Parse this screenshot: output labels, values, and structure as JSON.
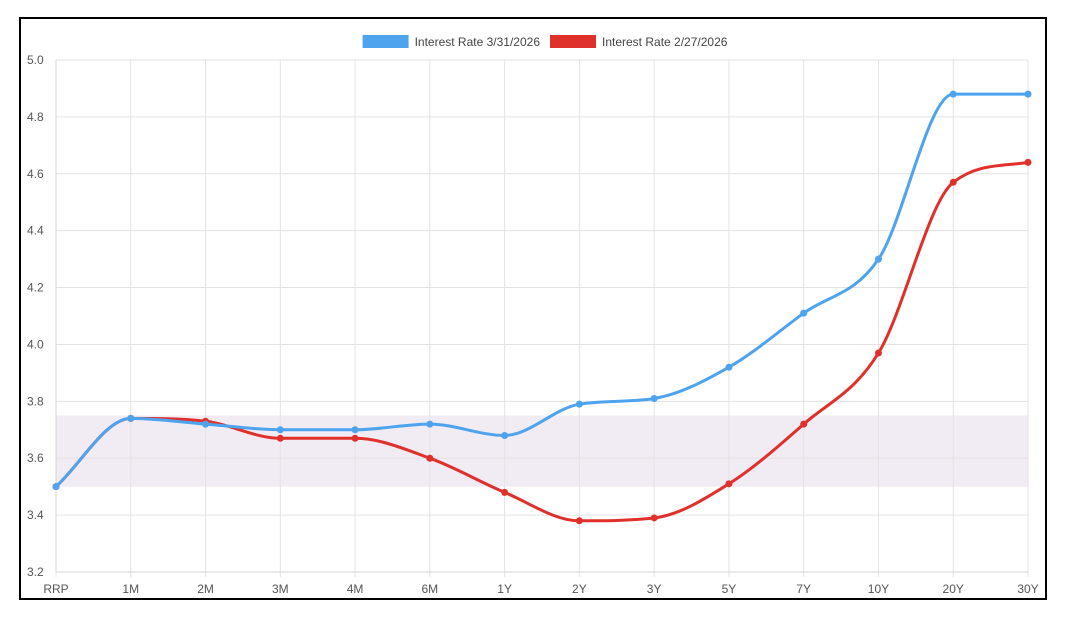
{
  "chart_data": {
    "type": "line",
    "title": "",
    "xlabel": "",
    "ylabel": "",
    "categories": [
      "RRP",
      "1M",
      "2M",
      "3M",
      "4M",
      "6M",
      "1Y",
      "2Y",
      "3Y",
      "5Y",
      "7Y",
      "10Y",
      "20Y",
      "30Y"
    ],
    "ylim": [
      3.2,
      5.0
    ],
    "yticks": [
      "3.2",
      "3.4",
      "3.6",
      "3.8",
      "4.0",
      "4.2",
      "4.4",
      "4.6",
      "4.8",
      "5.0"
    ],
    "grid": true,
    "legend_position": "top-center",
    "shaded_band": {
      "from": 3.5,
      "to": 3.75,
      "color": "#f1ebf3"
    },
    "series": [
      {
        "name": "Interest Rate 3/31/2026",
        "color": "#4ea3ee",
        "values": [
          3.5,
          3.74,
          3.72,
          3.7,
          3.7,
          3.72,
          3.68,
          3.79,
          3.81,
          3.92,
          4.11,
          4.3,
          4.88,
          4.88
        ]
      },
      {
        "name": "Interest Rate 2/27/2026",
        "color": "#e0302b",
        "values": [
          3.5,
          3.74,
          3.73,
          3.67,
          3.67,
          3.6,
          3.48,
          3.38,
          3.39,
          3.51,
          3.72,
          3.97,
          4.57,
          4.64
        ]
      }
    ]
  }
}
